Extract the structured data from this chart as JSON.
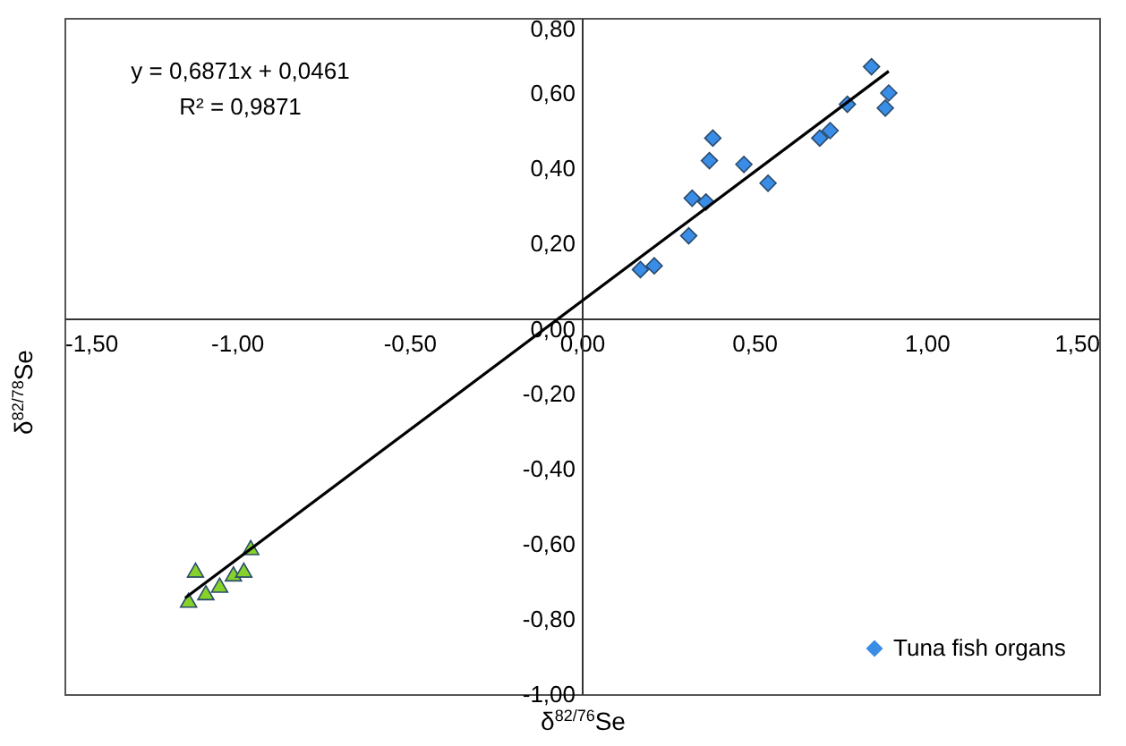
{
  "chart_data": {
    "type": "scatter",
    "xlabel": "δ$^{82/76}$Se",
    "ylabel": "δ$^{82/78}$Se",
    "xlim": [
      -1.5,
      1.5
    ],
    "ylim": [
      -1.0,
      0.8
    ],
    "xticks": [
      {
        "value": -1.5,
        "label": "-1,50"
      },
      {
        "value": -1.0,
        "label": "-1,00"
      },
      {
        "value": -0.5,
        "label": "-0,50"
      },
      {
        "value": 0,
        "label": "0,00"
      },
      {
        "value": 0.5,
        "label": "0,50"
      },
      {
        "value": 1.0,
        "label": "1,00"
      },
      {
        "value": 1.5,
        "label": "1,50"
      }
    ],
    "yticks": [
      {
        "value": -1.0,
        "label": "-1,00"
      },
      {
        "value": -0.8,
        "label": "-0,80"
      },
      {
        "value": -0.6,
        "label": "-0,60"
      },
      {
        "value": -0.4,
        "label": "-0,40"
      },
      {
        "value": -0.2,
        "label": "-0,20"
      },
      {
        "value": 0,
        "label": "0,00"
      },
      {
        "value": 0.2,
        "label": "0,20"
      },
      {
        "value": 0.4,
        "label": "0,40"
      },
      {
        "value": 0.6,
        "label": "0,60"
      },
      {
        "value": 0.8,
        "label": "0,80"
      }
    ],
    "grid": false,
    "legend": "bottom right",
    "annotations": [
      "y = 0,6871x + 0,0461",
      "R² = 0,9871"
    ],
    "series": [
      {
        "color": "#86d22a",
        "marker": "triangle",
        "x": [
          -1.12,
          -0.96,
          -1.01,
          -0.98,
          -1.05,
          -1.09,
          -1.14
        ],
        "values": [
          -0.67,
          -0.61,
          -0.68,
          -0.67,
          -0.71,
          -0.73,
          -0.75
        ]
      },
      {
        "name": "Tuna fish organs",
        "color": "#3a8de6",
        "marker": "diamond",
        "x": [
          0.17,
          0.21,
          0.31,
          0.32,
          0.36,
          0.37,
          0.38,
          0.47,
          0.54,
          0.69,
          0.72,
          0.77,
          0.84,
          0.89,
          0.88
        ],
        "values": [
          0.13,
          0.14,
          0.22,
          0.32,
          0.31,
          0.42,
          0.48,
          0.41,
          0.36,
          0.48,
          0.5,
          0.57,
          0.67,
          0.6,
          0.56
        ]
      },
      {
        "type": "line",
        "color": "#000000",
        "x": [
          -1.15,
          0.89
        ],
        "values": [
          -0.744,
          0.658
        ]
      }
    ]
  }
}
